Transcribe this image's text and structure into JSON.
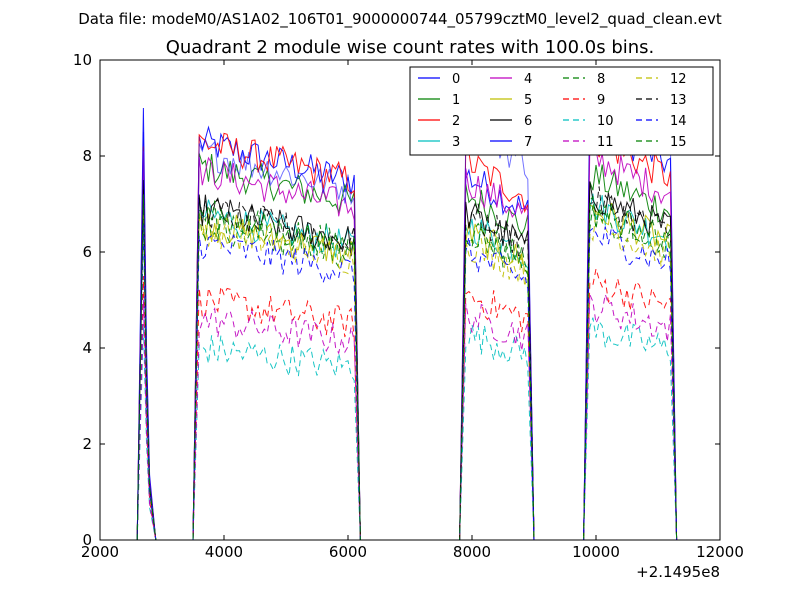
{
  "figure": {
    "suptitle": "Data file: modeM0/AS1A02_106T01_9000000744_05799cztM0_level2_quad_clean.evt"
  },
  "chart_data": {
    "type": "line",
    "title": "Quadrant 2 module wise count rates with 100.0s bins.",
    "xlabel": "",
    "ylabel": "",
    "x_offset_text": "+2.1495e8",
    "xlim": [
      2000,
      12000
    ],
    "ylim": [
      0,
      10
    ],
    "xticks": [
      2000,
      4000,
      6000,
      8000,
      10000,
      12000
    ],
    "yticks": [
      0,
      2,
      4,
      6,
      8,
      10
    ],
    "grid": false,
    "legend_position": "top-right",
    "legend_columns": 4,
    "segments": [
      {
        "start": 2700,
        "end": 2900
      },
      {
        "start": 3600,
        "end": 6100
      },
      {
        "start": 7900,
        "end": 8900
      },
      {
        "start": 9900,
        "end": 11200
      }
    ],
    "series": [
      {
        "name": "0",
        "color": "#0000ff",
        "dash": "solid",
        "level": [
          9.0,
          8.3,
          7.6,
          8.7
        ]
      },
      {
        "name": "1",
        "color": "#008000",
        "dash": "solid",
        "level": [
          7.8,
          7.8,
          7.2,
          7.6
        ]
      },
      {
        "name": "2",
        "color": "#ff0000",
        "dash": "solid",
        "level": [
          8.2,
          8.3,
          7.9,
          8.4
        ]
      },
      {
        "name": "3",
        "color": "#00bfbf",
        "dash": "solid",
        "level": [
          7.0,
          6.8,
          6.6,
          7.0
        ]
      },
      {
        "name": "4",
        "color": "#bf00bf",
        "dash": "solid",
        "level": [
          8.1,
          7.7,
          7.5,
          8.0
        ]
      },
      {
        "name": "5",
        "color": "#bfbf00",
        "dash": "solid",
        "level": [
          7.2,
          6.6,
          6.4,
          6.9
        ]
      },
      {
        "name": "6",
        "color": "#000000",
        "dash": "solid",
        "level": [
          7.5,
          6.9,
          6.8,
          7.2
        ]
      },
      {
        "name": "7",
        "color": "#0000ff",
        "dash": "solid",
        "level": [
          8.5,
          8.1,
          8.7,
          9.2
        ]
      },
      {
        "name": "8",
        "color": "#008000",
        "dash": "dashed",
        "level": [
          7.0,
          6.6,
          6.4,
          6.8
        ]
      },
      {
        "name": "9",
        "color": "#ff0000",
        "dash": "dashed",
        "level": [
          5.5,
          5.0,
          5.1,
          5.4
        ]
      },
      {
        "name": "10",
        "color": "#00bfbf",
        "dash": "dashed",
        "level": [
          4.5,
          4.0,
          4.3,
          4.4
        ]
      },
      {
        "name": "11",
        "color": "#bf00bf",
        "dash": "dashed",
        "level": [
          5.0,
          4.6,
          4.7,
          4.9
        ]
      },
      {
        "name": "12",
        "color": "#bfbf00",
        "dash": "dashed",
        "level": [
          6.8,
          6.5,
          6.2,
          6.6
        ]
      },
      {
        "name": "13",
        "color": "#000000",
        "dash": "dashed",
        "level": [
          7.3,
          6.9,
          6.8,
          7.1
        ]
      },
      {
        "name": "14",
        "color": "#0000ff",
        "dash": "dashed",
        "level": [
          6.6,
          6.2,
          6.0,
          6.4
        ]
      },
      {
        "name": "15",
        "color": "#008000",
        "dash": "dashed",
        "level": [
          7.2,
          6.8,
          6.5,
          6.9
        ]
      }
    ]
  }
}
